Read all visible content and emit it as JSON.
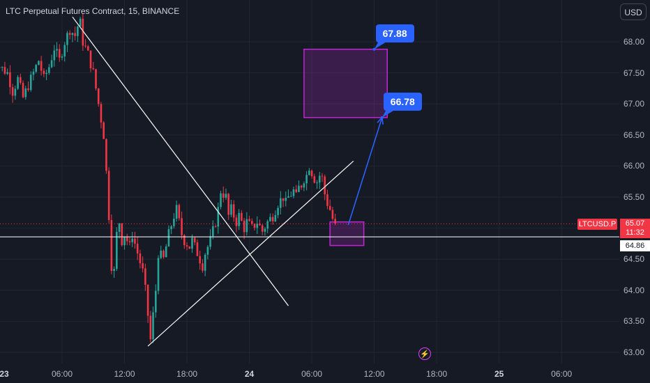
{
  "header": {
    "title": "LTC Perpetual Futures Contract, 15, BINANCE",
    "currency_button": "USD"
  },
  "price_axis": {
    "symbol_label": "LTCUSD.P",
    "last_price": "65.07",
    "countdown": "11:32",
    "horizontal_line_value": "64.86"
  },
  "annotations": {
    "target_upper": "67.88",
    "target_lower": "66.78"
  },
  "icons": {
    "event_marker": "lightning-icon"
  },
  "colors": {
    "background": "#161a25",
    "up": "#26a69a",
    "down": "#f23645",
    "zone_fill": "rgba(156,39,176,0.28)",
    "zone_border": "#c026d3",
    "arrow": "#2962ff",
    "trendline": "#ffffff",
    "grid": "#232632"
  },
  "chart_data": {
    "type": "candlestick",
    "interval": "15",
    "ylim": [
      62.95,
      68.45
    ],
    "xlim": [
      -24,
      232
    ],
    "grid": true,
    "y_ticks": [
      "68.00",
      "67.50",
      "67.00",
      "66.50",
      "66.00",
      "65.50",
      "65.00",
      "64.50",
      "64.00",
      "63.50",
      "63.00"
    ],
    "x_ticks": [
      {
        "label": "23",
        "bar": -20,
        "bold": true
      },
      {
        "label": "06:00",
        "bar": 4
      },
      {
        "label": "12:00",
        "bar": 28
      },
      {
        "label": "18:00",
        "bar": 52
      },
      {
        "label": "24",
        "bar": 76,
        "bold": true
      },
      {
        "label": "06:00",
        "bar": 100
      },
      {
        "label": "12:00",
        "bar": 124
      },
      {
        "label": "18:00",
        "bar": 148
      },
      {
        "label": "25",
        "bar": 172,
        "bold": true
      },
      {
        "label": "06:00",
        "bar": 196
      }
    ],
    "close_path": [
      [
        -23,
        67.8
      ],
      [
        -20,
        67.6
      ],
      [
        -17,
        67.5
      ],
      [
        -15,
        67.2
      ],
      [
        -13,
        67.4
      ],
      [
        -11,
        67.1
      ],
      [
        -9,
        67.3
      ],
      [
        -7,
        67.5
      ],
      [
        -5,
        67.7
      ],
      [
        -3,
        67.4
      ],
      [
        -1,
        67.6
      ],
      [
        1,
        67.9
      ],
      [
        3,
        67.7
      ],
      [
        5,
        68.0
      ],
      [
        7,
        68.2
      ],
      [
        9,
        68.1
      ],
      [
        10,
        68.25
      ],
      [
        11,
        68.3
      ],
      [
        12,
        68.0
      ],
      [
        14,
        67.8
      ],
      [
        16,
        67.5
      ],
      [
        18,
        67.0
      ],
      [
        20,
        66.5
      ],
      [
        21,
        65.9
      ],
      [
        22,
        65.2
      ],
      [
        23,
        64.4
      ],
      [
        23.5,
        64.1
      ],
      [
        24,
        64.3
      ],
      [
        25,
        64.9
      ],
      [
        26,
        65.1
      ],
      [
        27,
        64.8
      ],
      [
        28,
        64.9
      ],
      [
        30,
        64.7
      ],
      [
        31,
        64.9
      ],
      [
        33,
        64.6
      ],
      [
        35,
        64.3
      ],
      [
        36,
        64.0
      ],
      [
        37,
        63.6
      ],
      [
        38,
        63.2
      ],
      [
        39,
        63.6
      ],
      [
        40,
        64.0
      ],
      [
        41,
        64.6
      ],
      [
        43,
        64.5
      ],
      [
        45,
        64.9
      ],
      [
        47,
        65.2
      ],
      [
        48,
        65.3
      ],
      [
        49,
        65.1
      ],
      [
        50,
        64.9
      ],
      [
        51,
        64.8
      ],
      [
        53,
        64.7
      ],
      [
        54,
        64.8
      ],
      [
        56,
        64.6
      ],
      [
        57,
        64.5
      ],
      [
        58,
        64.4
      ],
      [
        59,
        64.6
      ],
      [
        61,
        64.8
      ],
      [
        63,
        65.1
      ],
      [
        64,
        65.3
      ],
      [
        65,
        65.6
      ],
      [
        67,
        65.5
      ],
      [
        68,
        65.2
      ],
      [
        69,
        65.3
      ],
      [
        71,
        65.1
      ],
      [
        72,
        65.2
      ],
      [
        74,
        65.0
      ],
      [
        75,
        65.1
      ],
      [
        77,
        65.0
      ],
      [
        79,
        65.1
      ],
      [
        81,
        64.95
      ],
      [
        83,
        65.1
      ],
      [
        85,
        65.2
      ],
      [
        86,
        65.3
      ],
      [
        87,
        65.4
      ],
      [
        89,
        65.5
      ],
      [
        90,
        65.4
      ],
      [
        91,
        65.5
      ],
      [
        93,
        65.6
      ],
      [
        94,
        65.5
      ],
      [
        95,
        65.65
      ],
      [
        96,
        65.7
      ],
      [
        97,
        65.8
      ],
      [
        98,
        65.85
      ],
      [
        99,
        66.0
      ],
      [
        100,
        65.9
      ],
      [
        101,
        65.8
      ],
      [
        102,
        65.75
      ],
      [
        103,
        65.85
      ],
      [
        104,
        65.8
      ],
      [
        105,
        65.55
      ],
      [
        106,
        65.4
      ],
      [
        107,
        65.3
      ],
      [
        108,
        65.15
      ],
      [
        109,
        65.07
      ]
    ],
    "zones": [
      {
        "bar_from": 97,
        "bar_to": 129,
        "low": 66.78,
        "high": 67.88
      },
      {
        "bar_from": 107,
        "bar_to": 120,
        "low": 64.72,
        "high": 65.1
      }
    ],
    "trendlines": [
      {
        "from": [
          8,
          68.4
        ],
        "to": [
          91,
          63.75
        ]
      },
      {
        "from": [
          37,
          63.1
        ],
        "to": [
          116,
          66.08
        ]
      }
    ],
    "horizontal_line": 64.86,
    "arrow": {
      "from": [
        114,
        65.05
      ],
      "to": [
        127,
        66.78
      ]
    }
  }
}
